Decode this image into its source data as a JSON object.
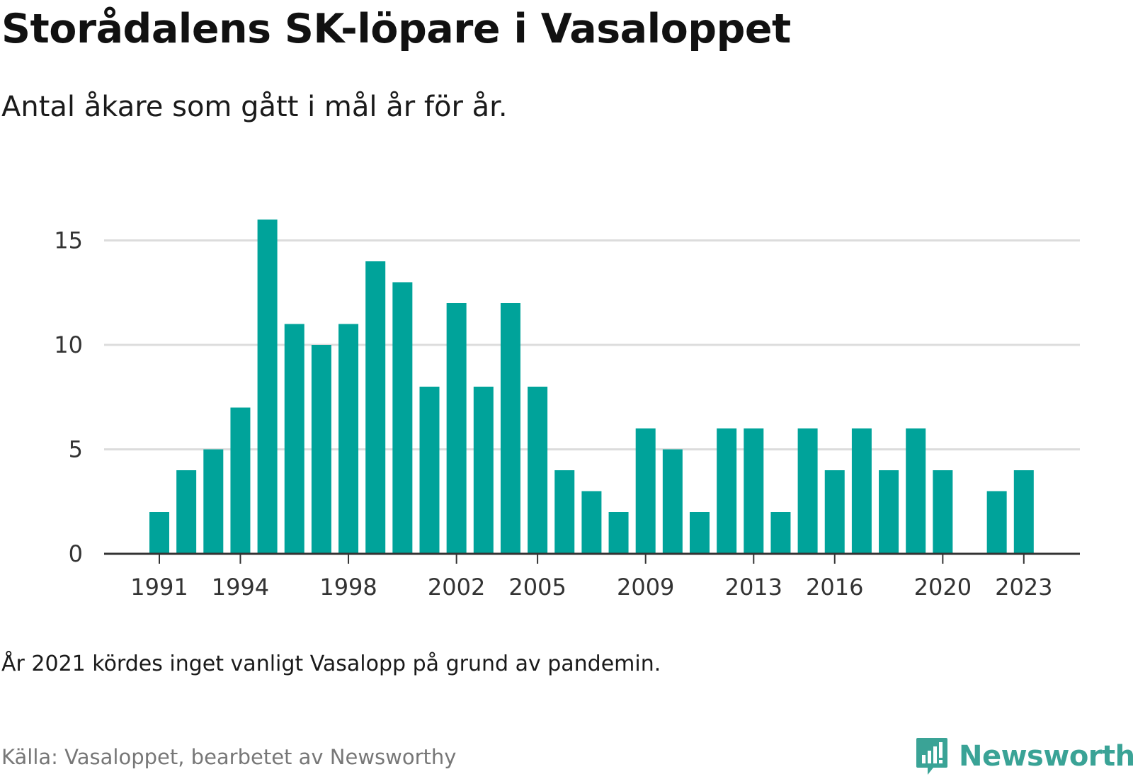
{
  "header": {
    "title": "Storådalens SK-löpare i Vasaloppet",
    "subtitle": "Antal åkare som gått i mål år för år."
  },
  "footer": {
    "note": "År 2021 kördes inget vanligt Vasalopp på grund av pandemin.",
    "source": "Källa: Vasaloppet, bearbetet av Newsworthy",
    "brand": "Newsworthy"
  },
  "colors": {
    "bar": "#00a39a",
    "grid": "#dcdcdc",
    "axis": "#333333",
    "brand": "#3aa396"
  },
  "icons": [
    "newsworthy-logo-icon"
  ],
  "chart_data": {
    "type": "bar",
    "title": "Storådalens SK-löpare i Vasaloppet",
    "subtitle": "Antal åkare som gått i mål år för år.",
    "xlabel": "",
    "ylabel": "",
    "categories": [
      1991,
      1992,
      1993,
      1994,
      1995,
      1996,
      1997,
      1998,
      1999,
      2000,
      2001,
      2002,
      2003,
      2004,
      2005,
      2006,
      2007,
      2008,
      2009,
      2010,
      2011,
      2012,
      2013,
      2014,
      2015,
      2016,
      2017,
      2018,
      2019,
      2020,
      2021,
      2022,
      2023
    ],
    "values": [
      2,
      4,
      5,
      7,
      16,
      11,
      10,
      11,
      14,
      13,
      8,
      12,
      8,
      12,
      8,
      4,
      3,
      2,
      6,
      5,
      2,
      6,
      6,
      2,
      6,
      4,
      6,
      4,
      6,
      4,
      0,
      3,
      4
    ],
    "x_tick_labels": [
      "1991",
      "1994",
      "1998",
      "2002",
      "2005",
      "2009",
      "2013",
      "2016",
      "2020",
      "2023"
    ],
    "y_ticks": [
      0,
      5,
      10,
      15
    ],
    "ylim": [
      0,
      16
    ],
    "grid": true,
    "legend": "none"
  }
}
